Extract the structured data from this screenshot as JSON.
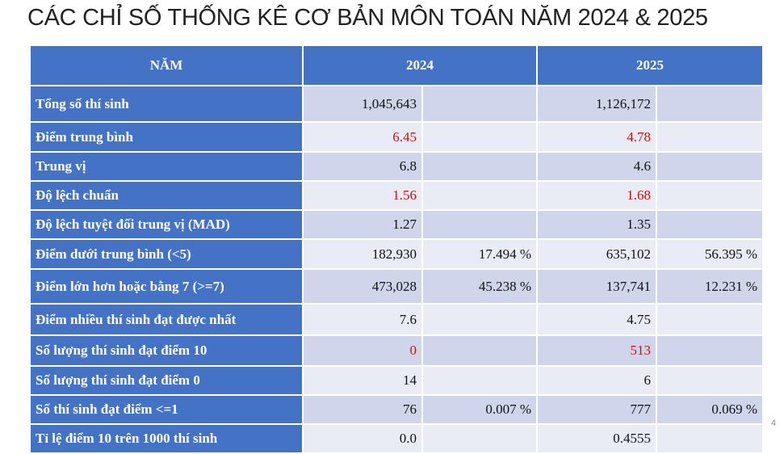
{
  "title": "CÁC CHỈ SỐ THỐNG KÊ CƠ BẢN MÔN TOÁN NĂM 2024 & 2025",
  "table": {
    "header": [
      "NĂM",
      "2024",
      "2025"
    ],
    "rows": [
      [
        "Tổng số thí sinh",
        "1,045,643",
        null,
        "1,126,172",
        null
      ],
      [
        "Điểm trung bình",
        "6.45",
        null,
        "4.78",
        null
      ],
      [
        "Trung vị",
        "6.8",
        null,
        "4.6",
        null
      ],
      [
        "Độ lệch chuẩn",
        "1.56",
        null,
        "1.68",
        null
      ],
      [
        "Độ lệch tuyệt đối trung vị (MAD)",
        "1.27",
        null,
        "1.35",
        null
      ],
      [
        "Điểm dưới trung bình (<5)",
        "182,930",
        "17.494 %",
        "635,102",
        "56.395 %"
      ],
      [
        "Điểm lớn hơn hoặc bằng 7 (>=7)",
        "473,028",
        "45.238 %",
        "137,741",
        "12.231 %"
      ],
      [
        "Điểm nhiều thí sinh đạt được nhất",
        "7.6",
        null,
        "4.75",
        null
      ],
      [
        "Số lượng thí sinh đạt điểm 10",
        "0",
        null,
        "513",
        null
      ],
      [
        "Số lượng thí sinh đạt điểm 0",
        "14",
        null,
        "6",
        null
      ],
      [
        "Số thí sinh đạt điểm <=1",
        "76",
        "0.007 %",
        "777",
        "0.069 %"
      ],
      [
        "Tỉ lệ điểm 10 trên 1000 thí sinh",
        "0.0",
        null,
        "0.4555",
        null
      ]
    ]
  },
  "page_number": "4"
}
